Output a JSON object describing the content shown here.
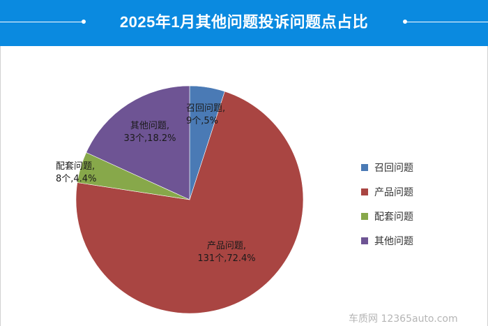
{
  "header": {
    "title": "2025年1月其他问题投诉问题点占比"
  },
  "watermark": "车质网 12365auto.com",
  "chart_data": {
    "type": "pie",
    "title": "2025年1月其他问题投诉问题点占比",
    "legend_position": "right",
    "slices": [
      {
        "name": "召回问题",
        "count": 9,
        "percent": 5,
        "label_line1": "召回问题,",
        "label_line2": "9个,5%",
        "color": "#4a7ab5"
      },
      {
        "name": "产品问题",
        "count": 131,
        "percent": 72.4,
        "label_line1": "产品问题,",
        "label_line2": "131个,72.4%",
        "color": "#a94542"
      },
      {
        "name": "配套问题",
        "count": 8,
        "percent": 4.4,
        "label_line1": "配套问题,",
        "label_line2": "8个,4.4%",
        "color": "#87a84a"
      },
      {
        "name": "其他问题",
        "count": 33,
        "percent": 18.2,
        "label_line1": "其他问题,",
        "label_line2": "33个,18.2%",
        "color": "#6e5494"
      }
    ]
  }
}
